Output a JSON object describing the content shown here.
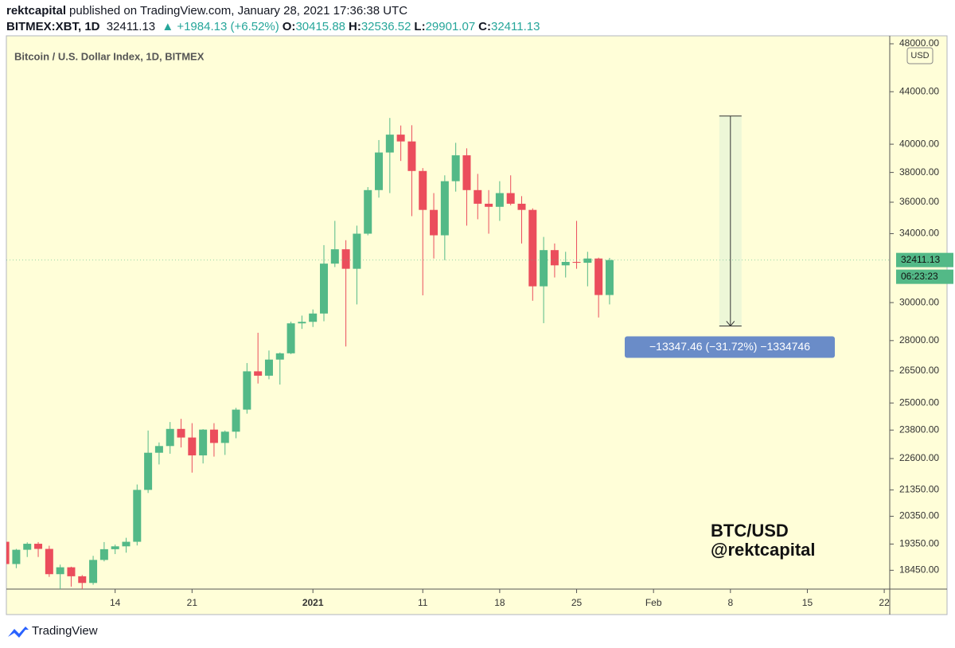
{
  "header": {
    "user": "rektcapital",
    "published": "published on TradingView.com, January 28, 2021 17:36:38 UTC",
    "symbol": "BITMEX:XBT, 1D",
    "last": "32411.13",
    "change": "▲ +1984.13 (+6.52%)",
    "o_label": "O:",
    "o": "30415.88",
    "h_label": "H:",
    "h": "32536.52",
    "l_label": "L:",
    "l": "29901.07",
    "c_label": "C:",
    "c": "32411.13"
  },
  "chart_data": {
    "type": "candlestick",
    "title": "Bitcoin / U.S. Dollar Index, 1D, BITMEX",
    "currency": "USD",
    "countdown": "06:23:23",
    "log_scale": true,
    "up_color": "#53b987",
    "down_color": "#eb4d5c",
    "x": [
      -28,
      -27,
      -26,
      -25,
      -24,
      -23,
      -22,
      -21,
      -20,
      -19,
      -18,
      -17,
      -16,
      -15,
      -14,
      -13,
      -12,
      -11,
      -10,
      -9,
      -8,
      -7,
      -6,
      -5,
      -4,
      -3,
      -2,
      -1,
      0,
      1,
      2,
      3,
      4,
      5,
      6,
      7,
      8,
      9,
      10,
      11,
      12,
      13,
      14,
      15,
      16,
      17,
      18,
      19,
      20,
      21,
      22,
      23,
      24,
      25,
      26,
      27
    ],
    "open": [
      19430,
      18660,
      19150,
      19360,
      19180,
      18320,
      18550,
      18250,
      18030,
      18800,
      19170,
      19270,
      19430,
      21350,
      22840,
      23120,
      23850,
      23480,
      22730,
      23820,
      23250,
      23730,
      24700,
      26480,
      26270,
      27050,
      27360,
      28890,
      28970,
      29410,
      32200,
      33050,
      31900,
      34000,
      36800,
      39400,
      40700,
      40200,
      38100,
      35500,
      33900,
      37400,
      39200,
      36800,
      35900,
      35700,
      36600,
      35900,
      35500,
      30900,
      33000,
      32100,
      32300,
      32250,
      32500,
      30415.88
    ],
    "high": [
      19530,
      19180,
      19410,
      19420,
      19290,
      18640,
      18570,
      18290,
      18940,
      19420,
      19330,
      19570,
      21560,
      23780,
      23270,
      24150,
      24290,
      24100,
      23840,
      24100,
      23780,
      24780,
      26880,
      28400,
      27500,
      27400,
      28980,
      29300,
      29630,
      33300,
      34800,
      33600,
      34500,
      37000,
      40300,
      41950,
      41380,
      41400,
      38300,
      36600,
      37800,
      40100,
      39700,
      37900,
      36800,
      37400,
      37800,
      36400,
      35600,
      33800,
      33400,
      32900,
      34800,
      32900,
      32550,
      32536.52
    ],
    "low": [
      18560,
      18520,
      18900,
      18900,
      18230,
      17650,
      17910,
      17580,
      17970,
      18750,
      19000,
      19050,
      19300,
      21230,
      22360,
      22800,
      23060,
      22030,
      22400,
      22680,
      22750,
      23450,
      24520,
      25900,
      26100,
      25850,
      27320,
      28600,
      28700,
      29000,
      32000,
      27700,
      29900,
      33900,
      36300,
      36600,
      38800,
      35100,
      30400,
      32500,
      32400,
      36700,
      34500,
      34900,
      34000,
      34800,
      35800,
      33400,
      30100,
      28900,
      31400,
      31400,
      31900,
      30900,
      29200,
      29901.07
    ],
    "close": [
      18660,
      19150,
      19360,
      19180,
      18320,
      18550,
      18250,
      18030,
      18800,
      19170,
      19270,
      19430,
      21350,
      22840,
      23120,
      23850,
      23480,
      22730,
      23820,
      23250,
      23730,
      24700,
      26480,
      26270,
      27050,
      27360,
      28890,
      28970,
      29410,
      32200,
      33050,
      31900,
      34000,
      36800,
      39400,
      40700,
      40200,
      38100,
      35500,
      33900,
      37400,
      39200,
      36800,
      35900,
      35700,
      36600,
      35900,
      35500,
      30900,
      33000,
      32100,
      32300,
      32250,
      32500,
      30415.88,
      32411.13
    ],
    "xlim": [
      -27.9,
      52.5
    ],
    "ylim": [
      17830,
      48700
    ],
    "xticks": [
      {
        "value": -18,
        "label": "14"
      },
      {
        "value": -11,
        "label": "21"
      },
      {
        "value": 0,
        "label": "2021"
      },
      {
        "value": 10,
        "label": "11"
      },
      {
        "value": 17,
        "label": "18"
      },
      {
        "value": 24,
        "label": "25"
      },
      {
        "value": 31,
        "label": "Feb"
      },
      {
        "value": 38,
        "label": "8"
      },
      {
        "value": 45,
        "label": "15"
      },
      {
        "value": 52,
        "label": "22"
      }
    ],
    "yticks": [
      {
        "value": 18450,
        "label": "18450.00"
      },
      {
        "value": 19350,
        "label": "19350.00"
      },
      {
        "value": 20350,
        "label": "20350.00"
      },
      {
        "value": 21350,
        "label": "21350.00"
      },
      {
        "value": 22600,
        "label": "22600.00"
      },
      {
        "value": 23800,
        "label": "23800.00"
      },
      {
        "value": 25000,
        "label": "25000.00"
      },
      {
        "value": 26500,
        "label": "26500.00"
      },
      {
        "value": 28000,
        "label": "28000.00"
      },
      {
        "value": 30000,
        "label": "30000.00"
      },
      {
        "value": 34000,
        "label": "34000.00"
      },
      {
        "value": 36000,
        "label": "36000.00"
      },
      {
        "value": 38000,
        "label": "38000.00"
      },
      {
        "value": 40000,
        "label": "40000.00"
      },
      {
        "value": 44000,
        "label": "44000.00"
      },
      {
        "value": 48000,
        "label": "48000.00"
      }
    ],
    "measure": {
      "x": 38,
      "from": 42100,
      "to": 28752.54,
      "label": "−13347.46 (−31.72%) −1334746"
    },
    "watermark": [
      "BTC/USD",
      "@rektcapital"
    ]
  },
  "footer": {
    "brand": "TradingView"
  }
}
